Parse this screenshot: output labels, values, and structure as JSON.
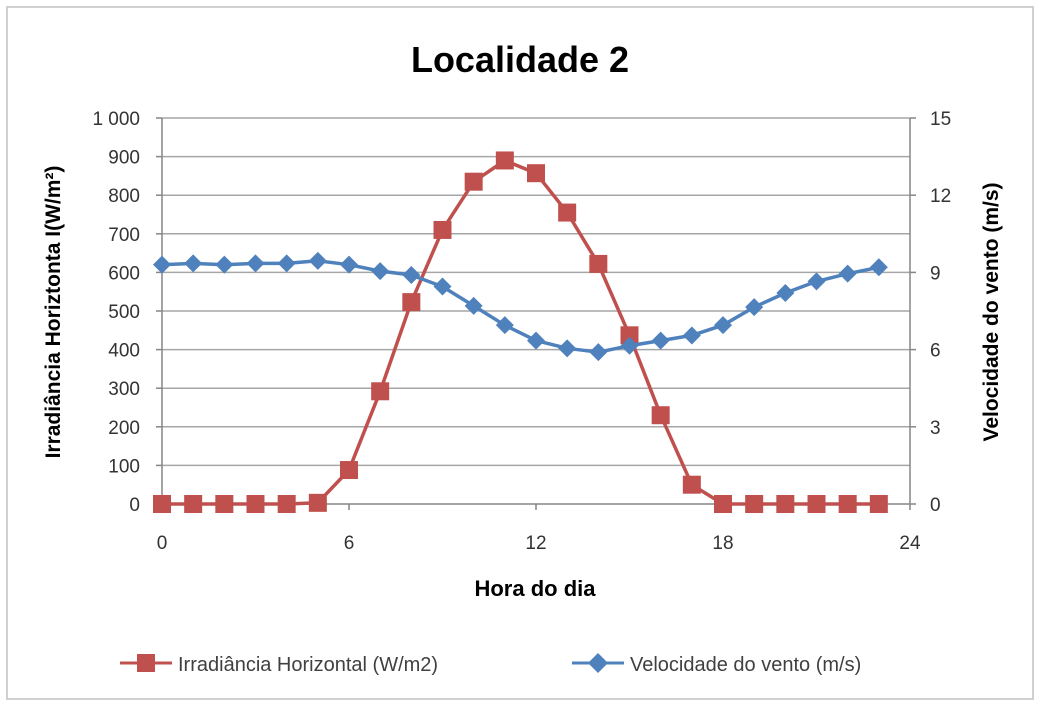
{
  "chart_data": {
    "type": "line",
    "title": "Localidade 2",
    "xlabel": "Hora do dia",
    "ylabel_left": "Irradiância Horiztonta I(W/m²)",
    "ylabel_right": "Velocidade do vento (m/s)",
    "xlim": [
      0,
      24
    ],
    "xticks": [
      0,
      6,
      12,
      18,
      24
    ],
    "ylim_left": [
      0,
      1000
    ],
    "yticks_left": [
      0,
      100,
      200,
      300,
      400,
      500,
      600,
      700,
      800,
      900,
      1000
    ],
    "ytick_labels_left": [
      "0",
      "100",
      "200",
      "300",
      "400",
      "500",
      "600",
      "700",
      "800",
      "900",
      "1 000"
    ],
    "ylim_right": [
      0,
      15
    ],
    "yticks_right": [
      0,
      3,
      6,
      9,
      12,
      15
    ],
    "grid": true,
    "legend_position": "bottom",
    "x": [
      0,
      1,
      2,
      3,
      4,
      5,
      6,
      7,
      8,
      9,
      10,
      11,
      12,
      13,
      14,
      15,
      16,
      17,
      18,
      19,
      20,
      21,
      22,
      23
    ],
    "series": [
      {
        "name": "Irradiância Horizontal (W/m2)",
        "axis": "left",
        "color": "#c0504d",
        "marker": "square",
        "values": [
          0,
          0,
          0,
          0,
          0,
          3,
          88,
          292,
          523,
          710,
          835,
          890,
          857,
          755,
          622,
          437,
          230,
          50,
          0,
          0,
          0,
          0,
          0,
          0
        ]
      },
      {
        "name": "Velocidade do vento (m/s)",
        "axis": "right",
        "color": "#4f81bd",
        "marker": "diamond",
        "values": [
          9.3,
          9.35,
          9.3,
          9.35,
          9.35,
          9.45,
          9.3,
          9.05,
          8.9,
          8.45,
          7.7,
          6.95,
          6.35,
          6.05,
          5.9,
          6.15,
          6.35,
          6.55,
          6.95,
          7.65,
          8.2,
          8.65,
          8.95,
          9.2
        ]
      }
    ]
  }
}
